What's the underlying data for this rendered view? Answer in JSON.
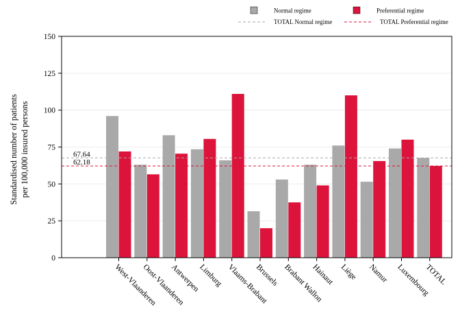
{
  "chart_data": {
    "type": "bar",
    "ylabel_lines": [
      "Standardised number of patients",
      "per 100,000 insured persons"
    ],
    "ylim": [
      0,
      150
    ],
    "yticks": [
      0,
      25,
      50,
      75,
      100,
      125,
      150
    ],
    "grid": true,
    "legend_position": "top-right",
    "categories": [
      "West-Vlaanderen",
      "Oost-Vlaanderen",
      "Antwerpen",
      "Limburg",
      "Vlaams-Brabant",
      "Brussels",
      "Brabant Wallon",
      "Hainaut",
      "Liège",
      "Namur",
      "Luxembourg",
      "TOTAL"
    ],
    "series": [
      {
        "name": "Normal regime",
        "color": "#a9a9a9",
        "values": [
          96,
          63,
          83,
          73.5,
          66,
          31.5,
          53,
          63,
          76,
          51.5,
          74,
          67.64
        ]
      },
      {
        "name": "Preferential regime",
        "color": "#dc143c",
        "values": [
          72,
          56.5,
          70.5,
          80.5,
          111,
          20,
          37.5,
          49,
          110,
          65.5,
          80,
          62.18
        ]
      }
    ],
    "reference_lines": [
      {
        "name": "TOTAL Normal regime",
        "value": 67.64,
        "label": "67.64",
        "color": "#a9a9a9"
      },
      {
        "name": "TOTAL Preferential regime",
        "value": 62.18,
        "label": "62.18",
        "color": "#dc143c"
      }
    ]
  }
}
